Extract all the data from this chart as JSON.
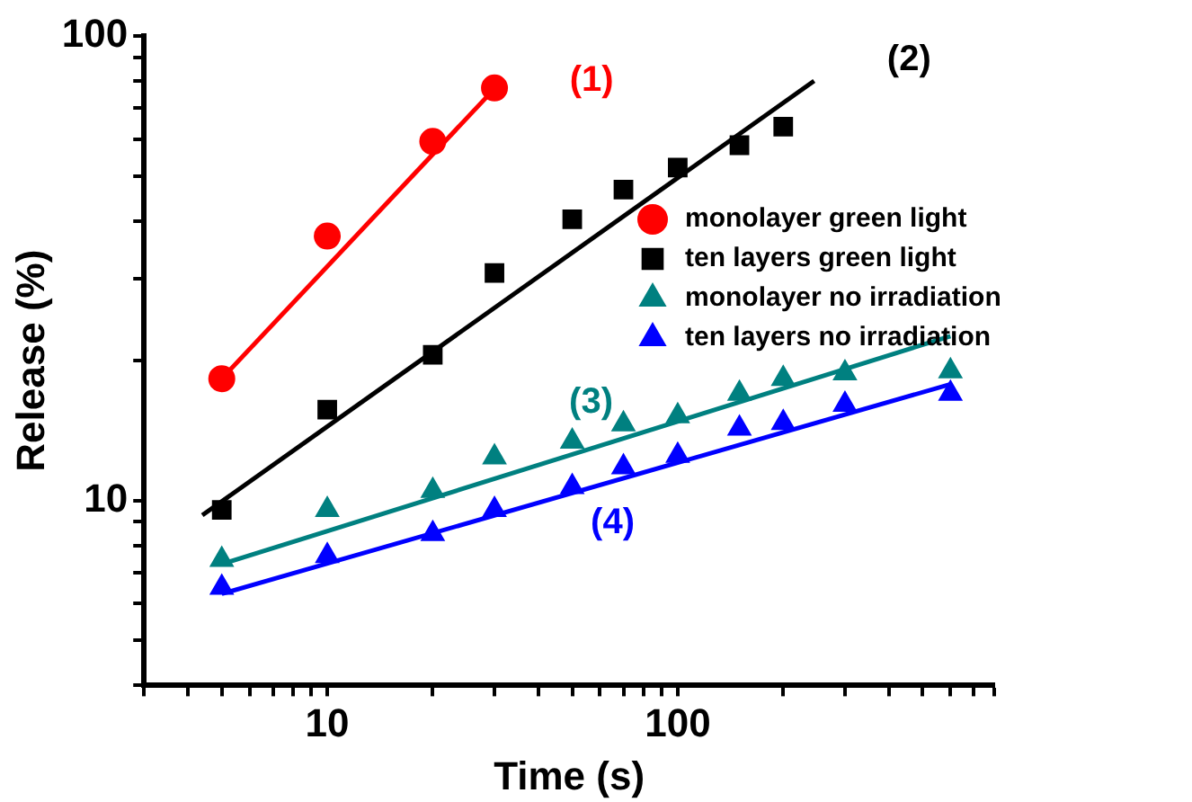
{
  "chart_data": {
    "type": "scatter",
    "xlabel": "Time (s)",
    "ylabel": "Release (%)",
    "log": "xy",
    "grid": false,
    "legend": "top right",
    "xlim": [
      3,
      800
    ],
    "ylim": [
      4,
      100
    ],
    "xticks": [
      {
        "value": 3,
        "label": null
      },
      {
        "value": 4,
        "label": null
      },
      {
        "value": 5,
        "label": null
      },
      {
        "value": 6,
        "label": null
      },
      {
        "value": 7,
        "label": null
      },
      {
        "value": 8,
        "label": null
      },
      {
        "value": 9,
        "label": null
      },
      10,
      {
        "value": 20,
        "label": null
      },
      {
        "value": 30,
        "label": null
      },
      {
        "value": 40,
        "label": null
      },
      {
        "value": 50,
        "label": null
      },
      {
        "value": 60,
        "label": null
      },
      {
        "value": 70,
        "label": null
      },
      {
        "value": 80,
        "label": null
      },
      {
        "value": 90,
        "label": null
      },
      100,
      {
        "value": 200,
        "label": null
      },
      {
        "value": 300,
        "label": null
      },
      {
        "value": 400,
        "label": null
      },
      {
        "value": 500,
        "label": null
      },
      {
        "value": 600,
        "label": null
      },
      {
        "value": 700,
        "label": null
      },
      {
        "value": 800,
        "label": null
      }
    ],
    "yticks": [
      {
        "value": 4,
        "label": null
      },
      {
        "value": 5,
        "label": null
      },
      {
        "value": 6,
        "label": null
      },
      {
        "value": 7,
        "label": null
      },
      {
        "value": 8,
        "label": null
      },
      {
        "value": 9,
        "label": null
      },
      10,
      {
        "value": 20,
        "label": null
      },
      {
        "value": 30,
        "label": null
      },
      {
        "value": 40,
        "label": null
      },
      {
        "value": 50,
        "label": null
      },
      {
        "value": 60,
        "label": null
      },
      {
        "value": 70,
        "label": null
      },
      {
        "value": 80,
        "label": null
      },
      {
        "value": 90,
        "label": null
      },
      100
    ],
    "series": [
      {
        "name": "monolayer green light",
        "marker": "circle",
        "color": "#ff0000",
        "x": [
          5,
          10,
          20,
          30
        ],
        "values": [
          18.3,
          37.1,
          59.3,
          77.3
        ]
      },
      {
        "name": "ten layers green light",
        "marker": "square",
        "color": "#000000",
        "x": [
          5,
          10,
          20,
          30,
          50,
          70,
          100,
          150,
          200
        ],
        "values": [
          9.55,
          15.7,
          20.6,
          30.9,
          40.3,
          46.7,
          52.1,
          58.2,
          63.8
        ]
      },
      {
        "name": "monolayer no irradiation",
        "marker": "triangle",
        "color": "#008080",
        "x": [
          5,
          10,
          20,
          30,
          50,
          70,
          100,
          150,
          200,
          300,
          600
        ],
        "values": [
          7.46,
          9.55,
          10.5,
          12.4,
          13.4,
          14.6,
          15.2,
          17.0,
          18.3,
          18.8,
          19
        ]
      },
      {
        "name": "ten layers no irradiation",
        "marker": "triangle",
        "color": "#0000ff",
        "x": [
          5,
          10,
          20,
          30,
          50,
          70,
          100,
          150,
          200,
          300,
          600
        ],
        "values": [
          6.5,
          7.6,
          8.48,
          9.55,
          10.7,
          11.8,
          12.5,
          14.3,
          14.7,
          16.1,
          17.0
        ]
      },
      {
        "type": "line",
        "marker": "none",
        "color": "#ff0000",
        "x": [
          5,
          30
        ],
        "values": [
          18.3,
          77
        ]
      },
      {
        "type": "line",
        "marker": "none",
        "color": "#000000",
        "x": [
          4.4,
          245
        ],
        "values": [
          9.3,
          80
        ]
      },
      {
        "type": "line",
        "marker": "none",
        "color": "#008080",
        "x": [
          5,
          600
        ],
        "values": [
          7.3,
          22.6
        ]
      },
      {
        "type": "line",
        "marker": "none",
        "color": "#0000ff",
        "x": [
          5,
          600
        ],
        "values": [
          6.3,
          17.8
        ]
      }
    ],
    "annotations": [
      "(1)",
      "(2)",
      "(3)",
      "(4)"
    ]
  }
}
